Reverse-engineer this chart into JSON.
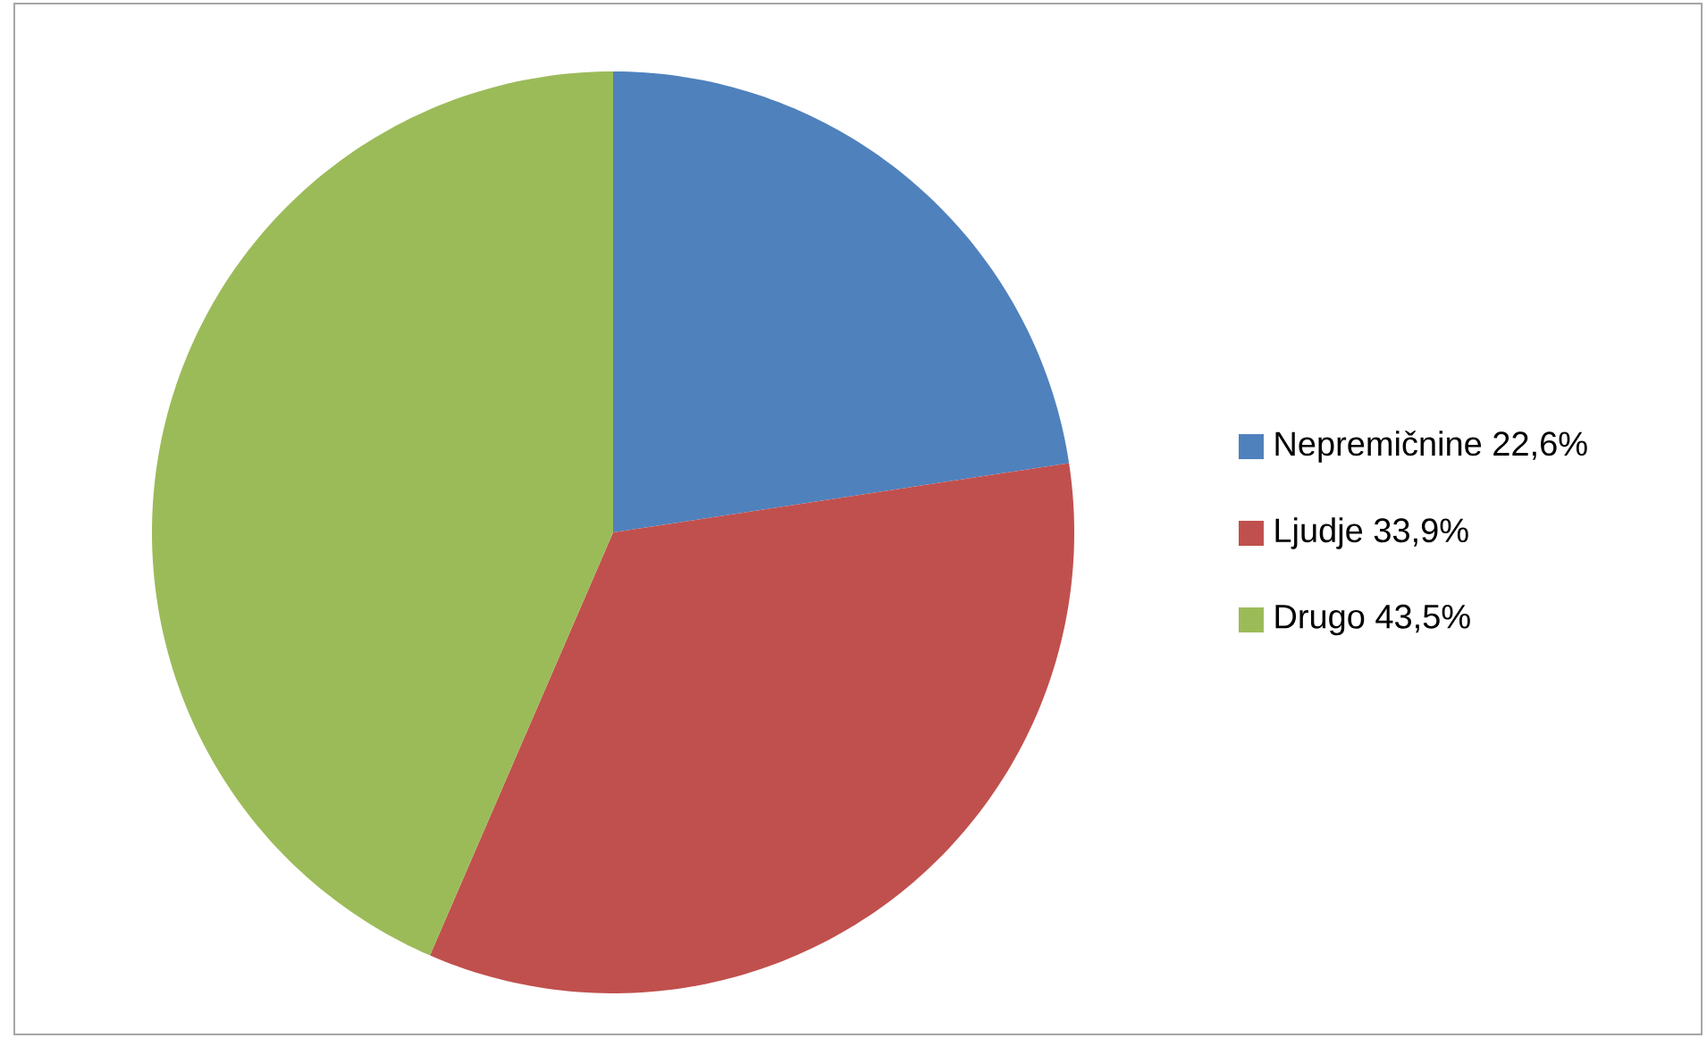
{
  "chart_data": {
    "type": "pie",
    "categories": [
      "Nepremičnine 22,6%",
      "Ljudje 33,9%",
      "Drugo 43,5%"
    ],
    "values": [
      22.6,
      33.9,
      43.5
    ],
    "colors": [
      "#4f81bd",
      "#c0504d",
      "#9bbb59"
    ],
    "legend": "right"
  }
}
